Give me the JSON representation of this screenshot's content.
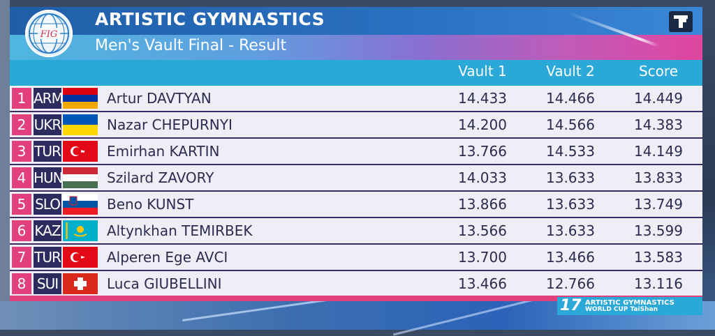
{
  "header": {
    "title": "ARTISTIC GYMNASTICS",
    "subtitle": "Men's Vault Final - Result",
    "logo_text": "FIG"
  },
  "columns": {
    "vault1": "Vault 1",
    "vault2": "Vault 2",
    "score": "Score"
  },
  "results": [
    {
      "rank": "1",
      "code": "ARM",
      "flag": "flag-arm",
      "name": "Artur DAVTYAN",
      "vault1": "14.433",
      "vault2": "14.466",
      "score": "14.449"
    },
    {
      "rank": "2",
      "code": "UKR",
      "flag": "flag-ukr",
      "name": "Nazar CHEPURNYI",
      "vault1": "14.200",
      "vault2": "14.566",
      "score": "14.383"
    },
    {
      "rank": "3",
      "code": "TUR",
      "flag": "flag-tur",
      "name": "Emirhan KARTIN",
      "vault1": "13.766",
      "vault2": "14.533",
      "score": "14.149"
    },
    {
      "rank": "4",
      "code": "HUN",
      "flag": "flag-hun",
      "name": "Szilard ZAVORY",
      "vault1": "14.033",
      "vault2": "13.633",
      "score": "13.833"
    },
    {
      "rank": "5",
      "code": "SLO",
      "flag": "flag-slo",
      "name": "Beno KUNST",
      "vault1": "13.866",
      "vault2": "13.633",
      "score": "13.749"
    },
    {
      "rank": "6",
      "code": "KAZ",
      "flag": "flag-kaz",
      "name": "Altynkhan TEMIRBEK",
      "vault1": "13.566",
      "vault2": "13.633",
      "score": "13.599"
    },
    {
      "rank": "7",
      "code": "TUR",
      "flag": "flag-tur",
      "name": "Alperen Ege AVCI",
      "vault1": "13.700",
      "vault2": "13.466",
      "score": "13.583"
    },
    {
      "rank": "8",
      "code": "SUI",
      "flag": "flag-sui",
      "name": "Luca GIUBELLINI",
      "vault1": "13.466",
      "vault2": "12.766",
      "score": "13.116"
    }
  ],
  "footer": {
    "edition": "17",
    "event_line1": "ARTISTIC GYMNASTICS",
    "event_line2": "WORLD CUP TaiShan"
  },
  "colors": {
    "rank_bg": "#e2407a",
    "code_bg": "#2e2a5e",
    "table_accent": "#2aa8d8",
    "row_bg": "#efeef6"
  }
}
